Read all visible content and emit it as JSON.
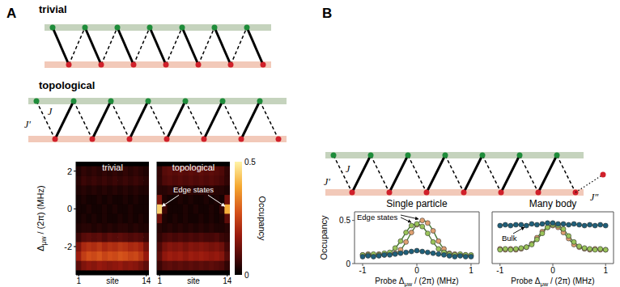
{
  "panels": [
    "A",
    "B"
  ],
  "diagrams": {
    "A": {
      "trivial": {
        "label": "trivial",
        "cells": 7
      },
      "topological": {
        "label": "topological",
        "cells": 7,
        "couplings": [
          "J′",
          "J"
        ]
      }
    },
    "B": {
      "cells": 7,
      "couplings": [
        "J′",
        "J",
        "J″"
      ]
    }
  },
  "chart_data": [
    {
      "type": "heatmap",
      "title": "trivial",
      "xlabel": "site",
      "ylabel": {
        "text": "Δ",
        "sub": "μw",
        "after": " / (2π) (MHz)"
      },
      "x": [
        1,
        2,
        3,
        4,
        5,
        6,
        7,
        8,
        9,
        10,
        11,
        12,
        13,
        14
      ],
      "y": [
        -3,
        -2.5,
        -2,
        -1.5,
        -1,
        -0.5,
        0,
        0.5,
        1,
        1.5,
        2
      ],
      "cells": [
        [
          0.1,
          0.14,
          0.16,
          0.15,
          0.17,
          0.16,
          0.15,
          0.16,
          0.17,
          0.15,
          0.16,
          0.15,
          0.13,
          0.1
        ],
        [
          0.18,
          0.24,
          0.27,
          0.26,
          0.28,
          0.25,
          0.27,
          0.26,
          0.28,
          0.27,
          0.25,
          0.26,
          0.23,
          0.17
        ],
        [
          0.14,
          0.2,
          0.22,
          0.21,
          0.23,
          0.2,
          0.22,
          0.21,
          0.23,
          0.22,
          0.2,
          0.21,
          0.19,
          0.13
        ],
        [
          0.06,
          0.09,
          0.1,
          0.09,
          0.1,
          0.08,
          0.1,
          0.09,
          0.1,
          0.09,
          0.08,
          0.09,
          0.08,
          0.06
        ],
        [
          0.03,
          0.04,
          0.04,
          0.03,
          0.04,
          0.03,
          0.04,
          0.03,
          0.04,
          0.04,
          0.03,
          0.04,
          0.03,
          0.03
        ],
        [
          0.02,
          0.03,
          0.02,
          0.03,
          0.02,
          0.03,
          0.02,
          0.02,
          0.03,
          0.02,
          0.03,
          0.02,
          0.03,
          0.02
        ],
        [
          0.02,
          0.02,
          0.03,
          0.02,
          0.02,
          0.03,
          0.02,
          0.03,
          0.02,
          0.02,
          0.03,
          0.02,
          0.02,
          0.02
        ],
        [
          0.02,
          0.03,
          0.02,
          0.02,
          0.03,
          0.02,
          0.03,
          0.02,
          0.02,
          0.03,
          0.02,
          0.03,
          0.02,
          0.02
        ],
        [
          0.03,
          0.04,
          0.03,
          0.04,
          0.03,
          0.04,
          0.03,
          0.04,
          0.03,
          0.04,
          0.03,
          0.04,
          0.03,
          0.03
        ],
        [
          0.04,
          0.06,
          0.05,
          0.06,
          0.05,
          0.06,
          0.05,
          0.06,
          0.05,
          0.06,
          0.05,
          0.06,
          0.05,
          0.04
        ],
        [
          0.03,
          0.05,
          0.04,
          0.05,
          0.04,
          0.05,
          0.04,
          0.05,
          0.04,
          0.05,
          0.04,
          0.05,
          0.04,
          0.03
        ]
      ],
      "xlim": [
        0.5,
        14.5
      ],
      "xticks": [
        1,
        14
      ],
      "ylim": [
        -3.5,
        2.5
      ],
      "yticks": [
        -2,
        0,
        2
      ],
      "reference_lines": [
        -1.5,
        1.5
      ],
      "tick_labels": true
    },
    {
      "type": "heatmap",
      "title": "topological",
      "xlabel": "site",
      "x": [
        1,
        2,
        3,
        4,
        5,
        6,
        7,
        8,
        9,
        10,
        11,
        12,
        13,
        14
      ],
      "y": [
        -3,
        -2.5,
        -2,
        -1.5,
        -1,
        -0.5,
        0,
        0.5,
        1,
        1.5,
        2
      ],
      "cells": [
        [
          0.06,
          0.09,
          0.1,
          0.09,
          0.1,
          0.09,
          0.1,
          0.09,
          0.1,
          0.09,
          0.1,
          0.09,
          0.08,
          0.05
        ],
        [
          0.1,
          0.16,
          0.18,
          0.17,
          0.18,
          0.16,
          0.18,
          0.17,
          0.18,
          0.17,
          0.16,
          0.17,
          0.15,
          0.09
        ],
        [
          0.08,
          0.13,
          0.15,
          0.14,
          0.15,
          0.13,
          0.15,
          0.14,
          0.15,
          0.14,
          0.13,
          0.14,
          0.12,
          0.07
        ],
        [
          0.05,
          0.07,
          0.08,
          0.07,
          0.08,
          0.07,
          0.08,
          0.07,
          0.08,
          0.07,
          0.07,
          0.08,
          0.06,
          0.05
        ],
        [
          0.04,
          0.03,
          0.04,
          0.03,
          0.04,
          0.03,
          0.04,
          0.03,
          0.04,
          0.03,
          0.04,
          0.03,
          0.03,
          0.04
        ],
        [
          0.12,
          0.03,
          0.02,
          0.03,
          0.02,
          0.03,
          0.02,
          0.02,
          0.03,
          0.02,
          0.03,
          0.02,
          0.03,
          0.1
        ],
        [
          0.45,
          0.06,
          0.02,
          0.02,
          0.02,
          0.03,
          0.02,
          0.03,
          0.02,
          0.02,
          0.03,
          0.02,
          0.05,
          0.4
        ],
        [
          0.14,
          0.03,
          0.02,
          0.02,
          0.03,
          0.02,
          0.03,
          0.02,
          0.02,
          0.03,
          0.02,
          0.03,
          0.02,
          0.12
        ],
        [
          0.04,
          0.04,
          0.05,
          0.04,
          0.05,
          0.04,
          0.05,
          0.04,
          0.05,
          0.04,
          0.05,
          0.04,
          0.04,
          0.03
        ],
        [
          0.05,
          0.08,
          0.09,
          0.08,
          0.09,
          0.08,
          0.09,
          0.08,
          0.09,
          0.08,
          0.09,
          0.08,
          0.07,
          0.05
        ],
        [
          0.05,
          0.09,
          0.1,
          0.09,
          0.1,
          0.09,
          0.1,
          0.09,
          0.1,
          0.09,
          0.1,
          0.09,
          0.08,
          0.05
        ]
      ],
      "xlim": [
        0.5,
        14.5
      ],
      "xticks": [
        1,
        14
      ],
      "ylim": [
        -3.5,
        2.5
      ],
      "yticks": [
        -2,
        0,
        2
      ],
      "reference_lines": [
        0
      ],
      "tick_labels": "x",
      "annotations": [
        "Edge states"
      ],
      "colorbar": {
        "label": "Occupancy",
        "range": [
          0,
          0.5
        ],
        "ticks": [
          0,
          0.5
        ]
      }
    },
    {
      "type": "line",
      "title": "Single particle",
      "ylabel": "Occupancy",
      "xlabel": {
        "text": "Probe Δ",
        "sub": "μw",
        "after": " / (2π) (MHz)"
      },
      "x": [
        -1,
        -0.9,
        -0.8,
        -0.7,
        -0.6,
        -0.5,
        -0.4,
        -0.3,
        -0.2,
        -0.1,
        0,
        0.1,
        0.2,
        0.3,
        0.4,
        0.5,
        0.6,
        0.7,
        0.8,
        0.9,
        1
      ],
      "series": [
        {
          "color": "#e0a070",
          "marker": "circle",
          "line_style": "solid",
          "values": [
            0.1,
            0.11,
            0.1,
            0.11,
            0.1,
            0.11,
            0.12,
            0.16,
            0.25,
            0.36,
            0.45,
            0.5,
            0.47,
            0.38,
            0.26,
            0.17,
            0.12,
            0.11,
            0.1,
            0.1,
            0.09
          ]
        },
        {
          "color": "#9ac45a",
          "marker": "circle",
          "line_style": "solid",
          "values": [
            0.1,
            0.1,
            0.11,
            0.1,
            0.12,
            0.13,
            0.18,
            0.26,
            0.36,
            0.44,
            0.46,
            0.43,
            0.35,
            0.25,
            0.17,
            0.13,
            0.11,
            0.1,
            0.11,
            0.1,
            0.1
          ]
        },
        {
          "color": "#1f5f7a",
          "marker": "circle",
          "line_style": "solid",
          "values": [
            0.08,
            0.09,
            0.08,
            0.09,
            0.1,
            0.1,
            0.11,
            0.12,
            0.13,
            0.14,
            0.15,
            0.14,
            0.13,
            0.12,
            0.11,
            0.1,
            0.09,
            0.08,
            0.09,
            0.08,
            0.08
          ]
        }
      ],
      "xlim": [
        -1.15,
        1.15
      ],
      "xticks": [
        -1,
        0,
        1
      ],
      "ylim": [
        0,
        0.6
      ],
      "yticks": [
        0,
        0.5
      ],
      "tick_labels": true,
      "annotations": [
        "Edge states"
      ]
    },
    {
      "type": "line",
      "title": "Many body",
      "xlabel": {
        "text": "Probe Δ",
        "sub": "μw",
        "after": " / (2π) (MHz)"
      },
      "x": [
        -1,
        -0.9,
        -0.8,
        -0.7,
        -0.6,
        -0.5,
        -0.4,
        -0.3,
        -0.2,
        -0.1,
        0,
        0.1,
        0.2,
        0.3,
        0.4,
        0.5,
        0.6,
        0.7,
        0.8,
        0.9,
        1
      ],
      "series": [
        {
          "color": "#e0a070",
          "marker": "circle",
          "line_style": "solid",
          "values": [
            0.17,
            0.16,
            0.17,
            0.16,
            0.17,
            0.19,
            0.23,
            0.3,
            0.37,
            0.42,
            0.44,
            0.42,
            0.36,
            0.29,
            0.22,
            0.19,
            0.17,
            0.16,
            0.17,
            0.16,
            0.16
          ]
        },
        {
          "color": "#9ac45a",
          "marker": "circle",
          "line_style": "solid",
          "values": [
            0.16,
            0.17,
            0.16,
            0.17,
            0.18,
            0.19,
            0.22,
            0.28,
            0.35,
            0.42,
            0.45,
            0.44,
            0.4,
            0.32,
            0.25,
            0.2,
            0.18,
            0.17,
            0.16,
            0.17,
            0.16
          ]
        },
        {
          "color": "#1f5f7a",
          "marker": "circle",
          "line_style": "solid",
          "values": [
            0.44,
            0.45,
            0.44,
            0.45,
            0.45,
            0.44,
            0.46,
            0.45,
            0.46,
            0.47,
            0.47,
            0.46,
            0.46,
            0.45,
            0.46,
            0.45,
            0.44,
            0.45,
            0.44,
            0.45,
            0.44
          ]
        }
      ],
      "xlim": [
        -1.15,
        1.15
      ],
      "xticks": [
        -1,
        0,
        1
      ],
      "ylim": [
        0,
        0.6
      ],
      "yticks": [
        0,
        0.5
      ],
      "tick_labels": "x",
      "annotations": [
        "Bulk"
      ]
    }
  ]
}
